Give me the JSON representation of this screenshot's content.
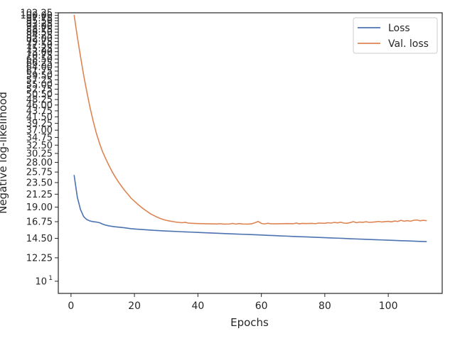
{
  "chart_data": {
    "type": "line",
    "xlabel": "Epochs",
    "ylabel": "Negative log-likelihood",
    "xlim": [
      -4,
      117
    ],
    "ylim": [
      9.0,
      102.25
    ],
    "y_scale": "log",
    "grid": false,
    "legend": "top-right",
    "x_ticks": [
      0,
      20,
      40,
      60,
      80,
      100
    ],
    "y_ticks": [
      {
        "value": 10,
        "label": "10",
        "exponent": "1"
      },
      {
        "value": 12.25,
        "label": "12.25"
      },
      {
        "value": 14.5,
        "label": "14.50"
      },
      {
        "value": 16.75,
        "label": "16.75"
      },
      {
        "value": 19.0,
        "label": "19.00"
      },
      {
        "value": 21.25,
        "label": "21.25"
      },
      {
        "value": 23.5,
        "label": "23.50"
      },
      {
        "value": 25.75,
        "label": "25.75"
      },
      {
        "value": 28.0,
        "label": "28.00"
      },
      {
        "value": 30.25,
        "label": "30.25"
      },
      {
        "value": 32.5,
        "label": "32.50"
      },
      {
        "value": 34.75,
        "label": "34.75"
      },
      {
        "value": 37.0,
        "label": "37.00"
      },
      {
        "value": 39.25,
        "label": "39.25"
      },
      {
        "value": 41.5,
        "label": "41.50"
      },
      {
        "value": 43.75,
        "label": "43.75"
      },
      {
        "value": 46.0,
        "label": "46.00"
      },
      {
        "value": 48.25,
        "label": "48.25"
      },
      {
        "value": 50.5,
        "label": "50.50"
      },
      {
        "value": 52.75,
        "label": "52.75"
      },
      {
        "value": 55.0,
        "label": "55.00"
      },
      {
        "value": 57.25,
        "label": "57.25"
      },
      {
        "value": 59.5,
        "label": "59.50"
      },
      {
        "value": 61.75,
        "label": "61.75"
      },
      {
        "value": 64.0,
        "label": "64.00"
      },
      {
        "value": 66.25,
        "label": "66.25"
      },
      {
        "value": 68.5,
        "label": "68.50"
      },
      {
        "value": 70.75,
        "label": "70.75"
      },
      {
        "value": 73.0,
        "label": "73.00"
      },
      {
        "value": 75.25,
        "label": "75.25"
      },
      {
        "value": 77.5,
        "label": "77.50"
      },
      {
        "value": 79.75,
        "label": "79.75"
      },
      {
        "value": 82.0,
        "label": "82.00"
      },
      {
        "value": 84.25,
        "label": "84.25"
      },
      {
        "value": 86.5,
        "label": "86.50"
      },
      {
        "value": 88.75,
        "label": "88.75"
      },
      {
        "value": 91.0,
        "label": "91.00"
      },
      {
        "value": 93.25,
        "label": "93.25"
      },
      {
        "value": 95.5,
        "label": "95.50"
      },
      {
        "value": 97.75,
        "label": "97.75"
      },
      {
        "value": 100.0,
        "label": "100.00"
      },
      {
        "value": 102.25,
        "label": "102.25"
      }
    ],
    "series": [
      {
        "name": "Loss",
        "color": "#4c72b0",
        "points": [
          [
            1,
            25.0
          ],
          [
            2,
            20.7
          ],
          [
            3,
            18.6
          ],
          [
            4,
            17.5
          ],
          [
            5,
            17.05
          ],
          [
            6,
            16.85
          ],
          [
            7,
            16.75
          ],
          [
            8,
            16.7
          ],
          [
            9,
            16.6
          ],
          [
            10,
            16.4
          ],
          [
            11,
            16.25
          ],
          [
            12,
            16.15
          ],
          [
            13,
            16.08
          ],
          [
            14,
            16.02
          ],
          [
            15,
            15.98
          ],
          [
            16,
            15.93
          ],
          [
            17,
            15.88
          ],
          [
            18,
            15.82
          ],
          [
            19,
            15.76
          ],
          [
            20,
            15.72
          ],
          [
            22,
            15.66
          ],
          [
            24,
            15.6
          ],
          [
            26,
            15.54
          ],
          [
            28,
            15.5
          ],
          [
            30,
            15.45
          ],
          [
            32,
            15.41
          ],
          [
            34,
            15.37
          ],
          [
            36,
            15.33
          ],
          [
            38,
            15.3
          ],
          [
            40,
            15.26
          ],
          [
            42,
            15.22
          ],
          [
            44,
            15.19
          ],
          [
            46,
            15.15
          ],
          [
            48,
            15.12
          ],
          [
            50,
            15.08
          ],
          [
            52,
            15.05
          ],
          [
            54,
            15.02
          ],
          [
            56,
            14.99
          ],
          [
            58,
            14.96
          ],
          [
            60,
            14.92
          ],
          [
            62,
            14.88
          ],
          [
            64,
            14.85
          ],
          [
            66,
            14.81
          ],
          [
            68,
            14.78
          ],
          [
            70,
            14.74
          ],
          [
            72,
            14.71
          ],
          [
            74,
            14.68
          ],
          [
            76,
            14.65
          ],
          [
            78,
            14.62
          ],
          [
            80,
            14.58
          ],
          [
            82,
            14.55
          ],
          [
            84,
            14.52
          ],
          [
            86,
            14.49
          ],
          [
            88,
            14.45
          ],
          [
            90,
            14.42
          ],
          [
            92,
            14.39
          ],
          [
            94,
            14.36
          ],
          [
            96,
            14.33
          ],
          [
            98,
            14.3
          ],
          [
            100,
            14.27
          ],
          [
            102,
            14.24
          ],
          [
            104,
            14.21
          ],
          [
            106,
            14.18
          ],
          [
            108,
            14.15
          ],
          [
            110,
            14.12
          ],
          [
            112,
            14.1
          ]
        ]
      },
      {
        "name": "Val. loss",
        "color": "#dd8452",
        "points": [
          [
            1,
            100.0
          ],
          [
            2,
            83.0
          ],
          [
            3,
            70.0
          ],
          [
            4,
            59.5
          ],
          [
            5,
            51.5
          ],
          [
            6,
            45.0
          ],
          [
            7,
            40.0
          ],
          [
            8,
            36.0
          ],
          [
            9,
            33.0
          ],
          [
            10,
            30.6
          ],
          [
            11,
            28.8
          ],
          [
            12,
            27.2
          ],
          [
            13,
            25.8
          ],
          [
            14,
            24.6
          ],
          [
            15,
            23.6
          ],
          [
            16,
            22.7
          ],
          [
            17,
            21.9
          ],
          [
            18,
            21.2
          ],
          [
            19,
            20.5
          ],
          [
            20,
            20.0
          ],
          [
            21,
            19.5
          ],
          [
            22,
            19.05
          ],
          [
            23,
            18.65
          ],
          [
            24,
            18.3
          ],
          [
            25,
            17.95
          ],
          [
            26,
            17.7
          ],
          [
            27,
            17.45
          ],
          [
            28,
            17.25
          ],
          [
            29,
            17.08
          ],
          [
            30,
            16.95
          ],
          [
            31,
            16.85
          ],
          [
            32,
            16.78
          ],
          [
            33,
            16.7
          ],
          [
            34,
            16.65
          ],
          [
            35,
            16.6
          ],
          [
            36,
            16.66
          ],
          [
            37,
            16.55
          ],
          [
            38,
            16.52
          ],
          [
            40,
            16.48
          ],
          [
            42,
            16.45
          ],
          [
            44,
            16.44
          ],
          [
            46,
            16.42
          ],
          [
            47,
            16.46
          ],
          [
            48,
            16.4
          ],
          [
            50,
            16.42
          ],
          [
            51,
            16.5
          ],
          [
            52,
            16.4
          ],
          [
            53,
            16.48
          ],
          [
            54,
            16.42
          ],
          [
            56,
            16.4
          ],
          [
            57,
            16.45
          ],
          [
            58,
            16.6
          ],
          [
            59,
            16.78
          ],
          [
            60,
            16.5
          ],
          [
            61,
            16.42
          ],
          [
            62,
            16.52
          ],
          [
            63,
            16.45
          ],
          [
            64,
            16.44
          ],
          [
            66,
            16.45
          ],
          [
            68,
            16.48
          ],
          [
            70,
            16.45
          ],
          [
            71,
            16.55
          ],
          [
            72,
            16.44
          ],
          [
            73,
            16.5
          ],
          [
            74,
            16.48
          ],
          [
            76,
            16.5
          ],
          [
            77,
            16.46
          ],
          [
            78,
            16.55
          ],
          [
            80,
            16.52
          ],
          [
            81,
            16.6
          ],
          [
            82,
            16.55
          ],
          [
            83,
            16.65
          ],
          [
            84,
            16.58
          ],
          [
            85,
            16.68
          ],
          [
            86,
            16.55
          ],
          [
            87,
            16.52
          ],
          [
            88,
            16.62
          ],
          [
            89,
            16.75
          ],
          [
            90,
            16.6
          ],
          [
            91,
            16.7
          ],
          [
            92,
            16.66
          ],
          [
            93,
            16.74
          ],
          [
            94,
            16.65
          ],
          [
            95,
            16.68
          ],
          [
            96,
            16.72
          ],
          [
            97,
            16.78
          ],
          [
            98,
            16.7
          ],
          [
            99,
            16.76
          ],
          [
            100,
            16.8
          ],
          [
            101,
            16.72
          ],
          [
            102,
            16.85
          ],
          [
            103,
            16.78
          ],
          [
            104,
            16.95
          ],
          [
            105,
            16.82
          ],
          [
            106,
            16.9
          ],
          [
            107,
            16.82
          ],
          [
            108,
            16.95
          ],
          [
            109,
            17.0
          ],
          [
            110,
            16.88
          ],
          [
            111,
            16.95
          ],
          [
            112,
            16.9
          ]
        ]
      }
    ]
  }
}
